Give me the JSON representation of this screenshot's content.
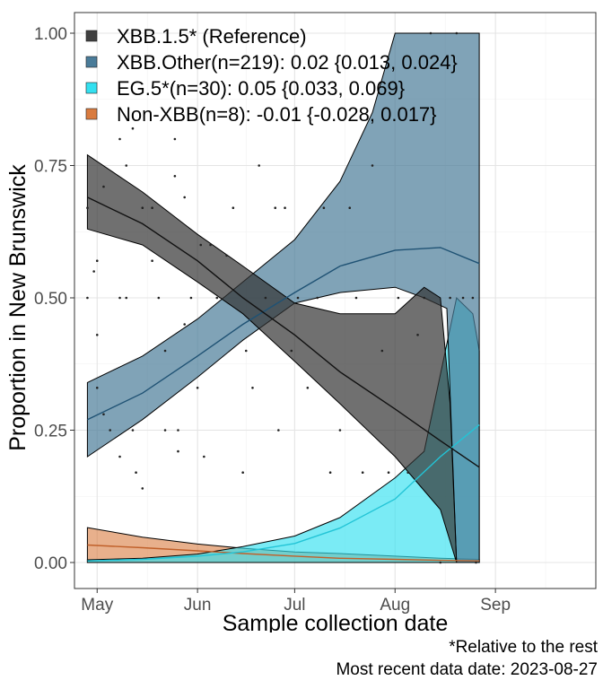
{
  "chart_data": {
    "type": "area",
    "xlabel": "Sample collection date",
    "ylabel": "Proportion in New Brunswick",
    "x_ticks": [
      "May",
      "Jun",
      "Jul",
      "Aug",
      "Sep"
    ],
    "y_ticks": [
      "0.00",
      "0.25",
      "0.50",
      "0.75",
      "1.00"
    ],
    "ylim": [
      0,
      1
    ],
    "xlim": [
      "2023-04-24",
      "2023-10-02"
    ],
    "grid": true,
    "legend_position": "top-left",
    "series": [
      {
        "name": "XBB.1.5* (Reference)",
        "color": "#333333",
        "fit": [
          [
            "2023-04-28",
            0.69
          ],
          [
            "2023-05-15",
            0.64
          ],
          [
            "2023-06-01",
            0.57
          ],
          [
            "2023-06-15",
            0.5
          ],
          [
            "2023-07-01",
            0.43
          ],
          [
            "2023-07-15",
            0.36
          ],
          [
            "2023-08-01",
            0.29
          ],
          [
            "2023-08-15",
            0.23
          ],
          [
            "2023-08-27",
            0.18
          ]
        ],
        "lower": [
          [
            "2023-04-28",
            0.63
          ],
          [
            "2023-05-15",
            0.6
          ],
          [
            "2023-06-01",
            0.53
          ],
          [
            "2023-06-15",
            0.47
          ],
          [
            "2023-07-01",
            0.38
          ],
          [
            "2023-07-15",
            0.3
          ],
          [
            "2023-08-01",
            0.2
          ],
          [
            "2023-08-15",
            0.1
          ],
          [
            "2023-08-20",
            0.0
          ],
          [
            "2023-08-27",
            0.0
          ]
        ],
        "upper": [
          [
            "2023-04-28",
            0.77
          ],
          [
            "2023-05-15",
            0.7
          ],
          [
            "2023-06-01",
            0.62
          ],
          [
            "2023-06-15",
            0.56
          ],
          [
            "2023-07-01",
            0.49
          ],
          [
            "2023-07-15",
            0.47
          ],
          [
            "2023-08-01",
            0.47
          ],
          [
            "2023-08-10",
            0.52
          ],
          [
            "2023-08-15",
            0.5
          ],
          [
            "2023-08-18",
            0.3
          ],
          [
            "2023-08-20",
            0.0
          ],
          [
            "2023-08-27",
            0.0
          ]
        ]
      },
      {
        "name": "XBB.Other(n=219): 0.02 {0.013, 0.024}",
        "color": "#4a7c99",
        "fit": [
          [
            "2023-04-28",
            0.27
          ],
          [
            "2023-05-15",
            0.32
          ],
          [
            "2023-06-01",
            0.39
          ],
          [
            "2023-06-15",
            0.45
          ],
          [
            "2023-07-01",
            0.51
          ],
          [
            "2023-07-15",
            0.56
          ],
          [
            "2023-08-01",
            0.59
          ],
          [
            "2023-08-15",
            0.595
          ],
          [
            "2023-08-27",
            0.565
          ]
        ],
        "lower": [
          [
            "2023-04-28",
            0.2
          ],
          [
            "2023-05-15",
            0.27
          ],
          [
            "2023-06-01",
            0.35
          ],
          [
            "2023-06-15",
            0.42
          ],
          [
            "2023-07-01",
            0.49
          ],
          [
            "2023-07-15",
            0.51
          ],
          [
            "2023-08-01",
            0.52
          ],
          [
            "2023-08-10",
            0.5
          ],
          [
            "2023-08-17",
            0.48
          ],
          [
            "2023-08-20",
            0.0
          ],
          [
            "2023-08-27",
            0.0
          ]
        ],
        "upper": [
          [
            "2023-04-28",
            0.34
          ],
          [
            "2023-05-15",
            0.39
          ],
          [
            "2023-06-01",
            0.46
          ],
          [
            "2023-06-15",
            0.53
          ],
          [
            "2023-07-01",
            0.61
          ],
          [
            "2023-07-15",
            0.72
          ],
          [
            "2023-07-25",
            0.85
          ],
          [
            "2023-08-01",
            1.0
          ],
          [
            "2023-08-27",
            1.0
          ]
        ]
      },
      {
        "name": "EG.5*(n=30): 0.05 {0.033, 0.069}",
        "color": "#33e0f0",
        "fit": [
          [
            "2023-04-28",
            0.003
          ],
          [
            "2023-05-15",
            0.006
          ],
          [
            "2023-06-01",
            0.012
          ],
          [
            "2023-06-15",
            0.02
          ],
          [
            "2023-07-01",
            0.036
          ],
          [
            "2023-07-15",
            0.065
          ],
          [
            "2023-08-01",
            0.12
          ],
          [
            "2023-08-15",
            0.2
          ],
          [
            "2023-08-27",
            0.26
          ]
        ],
        "lower": [
          [
            "2023-04-28",
            0.0
          ],
          [
            "2023-08-27",
            0.0
          ]
        ],
        "upper": [
          [
            "2023-04-28",
            0.005
          ],
          [
            "2023-05-15",
            0.008
          ],
          [
            "2023-06-01",
            0.016
          ],
          [
            "2023-06-15",
            0.03
          ],
          [
            "2023-07-01",
            0.05
          ],
          [
            "2023-07-15",
            0.085
          ],
          [
            "2023-08-01",
            0.16
          ],
          [
            "2023-08-10",
            0.21
          ],
          [
            "2023-08-20",
            0.5
          ],
          [
            "2023-08-25",
            0.47
          ],
          [
            "2023-08-27",
            0.4
          ]
        ]
      },
      {
        "name": "Non-XBB(n=8): -0.01 {-0.028, 0.017}",
        "color": "#d97b3f",
        "fit": [
          [
            "2023-04-28",
            0.033
          ],
          [
            "2023-05-15",
            0.028
          ],
          [
            "2023-06-01",
            0.022
          ],
          [
            "2023-06-15",
            0.017
          ],
          [
            "2023-07-01",
            0.012
          ],
          [
            "2023-07-15",
            0.008
          ],
          [
            "2023-08-01",
            0.006
          ],
          [
            "2023-08-15",
            0.004
          ],
          [
            "2023-08-27",
            0.003
          ]
        ],
        "lower": [
          [
            "2023-04-28",
            0.0
          ],
          [
            "2023-08-27",
            0.0
          ]
        ],
        "upper": [
          [
            "2023-04-28",
            0.066
          ],
          [
            "2023-05-15",
            0.048
          ],
          [
            "2023-06-01",
            0.035
          ],
          [
            "2023-06-15",
            0.027
          ],
          [
            "2023-07-01",
            0.02
          ],
          [
            "2023-07-15",
            0.017
          ],
          [
            "2023-08-01",
            0.012
          ],
          [
            "2023-08-15",
            0.008
          ],
          [
            "2023-08-27",
            0.006
          ]
        ]
      }
    ],
    "points": [
      [
        "2023-04-28",
        0.67
      ],
      [
        "2023-04-28",
        0.5
      ],
      [
        "2023-04-30",
        0.55
      ],
      [
        "2023-05-01",
        0.57
      ],
      [
        "2023-05-01",
        0.43
      ],
      [
        "2023-05-01",
        0.33
      ],
      [
        "2023-05-03",
        0.28
      ],
      [
        "2023-05-03",
        0.71
      ],
      [
        "2023-05-05",
        0.25
      ],
      [
        "2023-05-08",
        0.5
      ],
      [
        "2023-05-08",
        0.8
      ],
      [
        "2023-05-08",
        0.2
      ],
      [
        "2023-05-10",
        0.75
      ],
      [
        "2023-05-10",
        0.5
      ],
      [
        "2023-05-12",
        0.82
      ],
      [
        "2023-05-12",
        0.25
      ],
      [
        "2023-05-13",
        0.17
      ],
      [
        "2023-05-15",
        0.67
      ],
      [
        "2023-05-15",
        0.14
      ],
      [
        "2023-05-18",
        0.67
      ],
      [
        "2023-05-18",
        0.57
      ],
      [
        "2023-05-20",
        0.5
      ],
      [
        "2023-05-22",
        0.4
      ],
      [
        "2023-05-22",
        0.25
      ],
      [
        "2023-05-25",
        0.73
      ],
      [
        "2023-05-25",
        0.8
      ],
      [
        "2023-05-26",
        0.21
      ],
      [
        "2023-05-26",
        0.25
      ],
      [
        "2023-05-28",
        0.69
      ],
      [
        "2023-05-28",
        0.45
      ],
      [
        "2023-05-30",
        0.5
      ],
      [
        "2023-06-01",
        0.33
      ],
      [
        "2023-06-02",
        0.6
      ],
      [
        "2023-06-03",
        0.2
      ],
      [
        "2023-06-05",
        0.6
      ],
      [
        "2023-06-07",
        0.5
      ],
      [
        "2023-06-10",
        0.58
      ],
      [
        "2023-06-12",
        0.67
      ],
      [
        "2023-06-15",
        0.17
      ],
      [
        "2023-06-16",
        0.4
      ],
      [
        "2023-06-18",
        0.33
      ],
      [
        "2023-06-20",
        0.75
      ],
      [
        "2023-06-22",
        0.5
      ],
      [
        "2023-06-25",
        0.67
      ],
      [
        "2023-06-26",
        0.25
      ],
      [
        "2023-06-28",
        0.67
      ],
      [
        "2023-06-30",
        0.4
      ],
      [
        "2023-07-02",
        0.5
      ],
      [
        "2023-07-05",
        0.33
      ],
      [
        "2023-07-08",
        0.5
      ],
      [
        "2023-07-10",
        0.67
      ],
      [
        "2023-07-12",
        0.17
      ],
      [
        "2023-07-15",
        0.25
      ],
      [
        "2023-07-18",
        0.67
      ],
      [
        "2023-07-20",
        0.5
      ],
      [
        "2023-07-22",
        0.17
      ],
      [
        "2023-07-25",
        0.75
      ],
      [
        "2023-07-28",
        0.4
      ],
      [
        "2023-07-30",
        0.17
      ],
      [
        "2023-08-02",
        0.5
      ],
      [
        "2023-08-05",
        0.17
      ],
      [
        "2023-08-08",
        0.43
      ],
      [
        "2023-08-10",
        0.5
      ],
      [
        "2023-08-12",
        1.0
      ],
      [
        "2023-08-15",
        0.0
      ],
      [
        "2023-08-18",
        0.5
      ],
      [
        "2023-08-20",
        1.0
      ],
      [
        "2023-08-22",
        0.5
      ],
      [
        "2023-08-25",
        0.5
      ],
      [
        "2023-08-26",
        0.0
      ]
    ]
  },
  "captions": {
    "line1": "*Relative to the rest",
    "line2": "Most recent data date: 2023-08-27"
  }
}
